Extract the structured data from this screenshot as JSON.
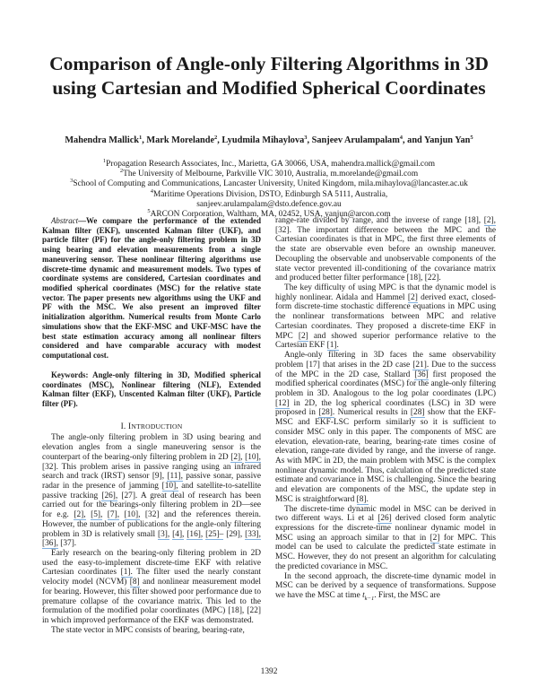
{
  "title_line1": "Comparison of Angle-only Filtering Algorithms in 3D",
  "title_line2": "using Cartesian and Modified Spherical Coordinates",
  "authors": [
    {
      "name": "Mahendra Mallick",
      "sup": "1",
      "sep": ", "
    },
    {
      "name": "Mark Morelande",
      "sup": "2",
      "sep": ", "
    },
    {
      "name": "Lyudmila Mihaylova",
      "sup": "3",
      "sep": ", "
    },
    {
      "name": "Sanjeev Arulampalam",
      "sup": "4",
      "sep": ", and "
    },
    {
      "name": "Yanjun Yan",
      "sup": "5",
      "sep": ""
    }
  ],
  "affiliations": [
    {
      "sup": "1",
      "text": "Propagation Research Associates, Inc., Marietta, GA 30066, USA, mahendra.mallick@gmail.com"
    },
    {
      "sup": "2",
      "text": "The University of Melbourne, Parkville VIC 3010, Australia, m.morelande@gmail.com"
    },
    {
      "sup": "3",
      "text": "School of Computing and Communications, Lancaster University, United Kingdom, mila.mihaylova@lancaster.ac.uk"
    },
    {
      "sup": "4",
      "text": "Maritime Operations Division, DSTO, Edinburgh SA 5111, Australia,"
    },
    {
      "sup": "",
      "text": "sanjeev.arulampalam@dsto.defence.gov.au"
    },
    {
      "sup": "5",
      "text": "ARCON Corporation, Waltham, MA, 02452, USA, yanjun@arcon.com"
    }
  ],
  "abstract": {
    "label": "Abstract",
    "text": "—We compare the performance of the extended Kalman filter (EKF), unscented Kalman filter (UKF), and particle filter (PF) for the angle-only filtering problem in 3D using bearing and elevation measurements from a single maneuvering sensor. These nonlinear filtering algorithms use discrete-time dynamic and measurement models. Two types of coordinate systems are considered, Cartesian coordinates and modified spherical coordinates (MSC) for the relative state vector. The paper presents new algorithms using the UKF and PF with the MSC. We also present an improved filter initialization algorithm. Numerical results from Monte Carlo simulations show that the EKF-MSC and UKF-MSC have the best state estimation accuracy among all nonlinear filters considered and have comparable accuracy with modest computational cost."
  },
  "keywords": "Keywords: Angle-only filtering in 3D, Modified spherical coordinates (MSC), Nonlinear filtering (NLF), Extended Kalman filter (EKF), Unscented Kalman filter (UKF), Particle filter (PF).",
  "section": {
    "number": "I. ",
    "initial": "I",
    "rest": "NTRODUCTION"
  },
  "left_paragraphs": [
    [
      {
        "t": "The angle-only filtering problem in 3D using bearing and elevation angles from a single maneuvering sensor is the counterpart of the bearing-only filtering problem in 2D "
      },
      {
        "c": "[2],"
      },
      {
        "t": " "
      },
      {
        "c": "[10],"
      },
      {
        "t": " [32]. This problem arises in passive ranging using an infrared search and track (IRST) sensor [9], "
      },
      {
        "c": "[11],"
      },
      {
        "t": " passive sonar, passive radar in the presence of jamming "
      },
      {
        "c": "[10],"
      },
      {
        "t": " and satellite-to-satellite passive tracking "
      },
      {
        "c": "[26],"
      },
      {
        "t": " [27]. A great deal of research has been carried out for the bearings-only filtering problem in 2D—see for e.g. "
      },
      {
        "c": "[2],"
      },
      {
        "t": " "
      },
      {
        "c": "[5],"
      },
      {
        "t": " "
      },
      {
        "c": "[7],"
      },
      {
        "t": " "
      },
      {
        "c": "[10],"
      },
      {
        "t": " [32] and the references therein. However, the number of publications for the angle-only filtering problem in 3D is relatively small "
      },
      {
        "c": "[3],"
      },
      {
        "t": " "
      },
      {
        "c": "[4],"
      },
      {
        "t": " "
      },
      {
        "c": "[16],"
      },
      {
        "t": " "
      },
      {
        "c": "[25]–"
      },
      {
        "t": " [29], "
      },
      {
        "c": "[33],"
      },
      {
        "t": " "
      },
      {
        "c": "[36],"
      },
      {
        "t": " [37]."
      }
    ],
    [
      {
        "t": "Early research on the bearing-only filtering problem in 2D used the easy-to-implement discrete-time EKF with relative Cartesian coordinates "
      },
      {
        "c": "[1]."
      },
      {
        "t": " The filter used the nearly constant velocity model (NCVM) "
      },
      {
        "c": "[8]"
      },
      {
        "t": " and nonlinear measurement model for bearing. However, this filter showed poor performance due to premature collapse of the covariance matrix. This led to the formulation of the modified polar coordinates (MPC) [18], [22] in which improved performance of the EKF was demonstrated."
      }
    ],
    [
      {
        "t": "The state vector in MPC consists of bearing, bearing-rate,"
      }
    ]
  ],
  "right_paragraphs": [
    [
      {
        "t": "range-rate divided by range, and the inverse of range [18], "
      },
      {
        "c": "[2],"
      },
      {
        "t": " [32]. The important difference between the MPC and the Cartesian coordinates is that in MPC, the first three elements of the state are observable even before an ownship maneuver. Decoupling the observable and unobservable components of the state vector prevented ill-conditioning of the covariance matrix and produced better filter performance [18], [22]."
      }
    ],
    [
      {
        "t": "The key difficulty of using MPC is that the dynamic model is highly nonlinear. Aidala and Hammel "
      },
      {
        "c": "[2]"
      },
      {
        "t": " derived exact, closed-form discrete-time stochastic difference equations in MPC using the nonlinear transformations between MPC and relative Cartesian coordinates. They proposed a discrete-time EKF in MPC "
      },
      {
        "c": "[2]"
      },
      {
        "t": " and showed superior performance relative to the Cartesian EKF "
      },
      {
        "c": "[1]."
      }
    ],
    [
      {
        "t": "Angle-only filtering in 3D faces the same observability problem [17] that arises in the 2D case "
      },
      {
        "c": "[21]."
      },
      {
        "t": " Due to the success of the MPC in the 2D case, Stallard "
      },
      {
        "c": "[36]"
      },
      {
        "t": " first proposed the modified spherical coordinates (MSC) for the angle-only filtering problem in 3D. Analogous to the log polar coordinates (LPC) "
      },
      {
        "c": "[12]"
      },
      {
        "t": " in 2D, the log spherical coordinates (LSC) in 3D were proposed in "
      },
      {
        "c": "[28]."
      },
      {
        "t": " Numerical results in "
      },
      {
        "c": "[28]"
      },
      {
        "t": " show that the EKF-MSC and EKF-LSC perform similarly so it is sufficient to consider MSC only in this paper. The components of MSC are elevation, elevation-rate, bearing, bearing-rate times cosine of elevation, range-rate divided by range, and the inverse of range. As with MPC in 2D, the main problem with MSC is the complex nonlinear dynamic model. Thus, calculation of the predicted state estimate and covariance in MSC is challenging. Since the bearing and elevation are components of the MSC, the update step in MSC is straightforward "
      },
      {
        "c": "[8]."
      }
    ],
    [
      {
        "t": "The discrete-time dynamic model in MSC can be derived in two different ways. Li et al "
      },
      {
        "c": "[26]"
      },
      {
        "t": " derived closed form analytic expressions for the discrete-time nonlinear dynamic model in MSC using an approach similar to that in "
      },
      {
        "c": "[2]"
      },
      {
        "t": " for MPC. This model can be used to calculate the predicted state estimate in MSC. However, they do not present an algorithm for calculating the predicted covariance in MSC."
      }
    ],
    [
      {
        "t": "In the second approach, the discrete-time dynamic model in MSC can be derived by a sequence of transformations. Suppose we have the MSC at time "
      },
      {
        "m": "t",
        "sub": "k−1"
      },
      {
        "t": ". First, the MSC are"
      }
    ]
  ],
  "page_number": "1392",
  "colors": {
    "text": "#1a1a1a",
    "citation_underline": "#7fb0e0"
  }
}
